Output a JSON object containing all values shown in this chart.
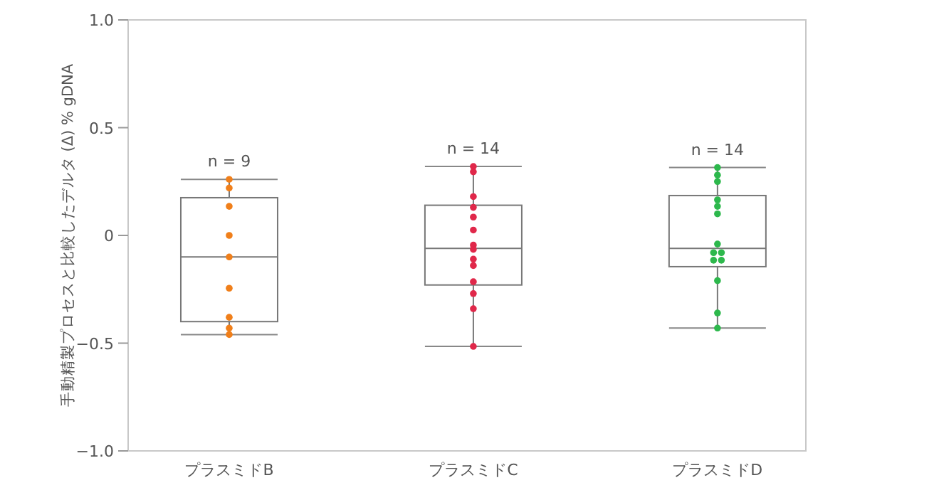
{
  "chart_data": {
    "type": "box",
    "ylabel": "手動精製プロセスと比較したデルタ (Δ) % gDNA",
    "categories": [
      "プラスミドB",
      "プラスミドC",
      "プラスミドD"
    ],
    "ylim": [
      -1,
      1
    ],
    "yticks": [
      {
        "value": -1,
        "label": "−1.0"
      },
      {
        "value": -0.5,
        "label": "−0.5"
      },
      {
        "value": 0,
        "label": "0"
      },
      {
        "value": 0.5,
        "label": "0.5"
      },
      {
        "value": 1,
        "label": "1.0"
      }
    ],
    "marker": "circle",
    "boxes": [
      {
        "low": -0.46,
        "q1": -0.4,
        "median": -0.1,
        "q3": 0.175,
        "high": 0.26
      },
      {
        "low": -0.515,
        "q1": -0.23,
        "median": -0.06,
        "q3": 0.14,
        "high": 0.32
      },
      {
        "low": -0.43,
        "q1": -0.145,
        "median": -0.06,
        "q3": 0.185,
        "high": 0.315
      }
    ],
    "series": [
      {
        "type": "scatter",
        "color": "#f07f1a",
        "x": [
          "プラスミドB",
          "プラスミドB",
          "プラスミドB",
          "プラスミドB",
          "プラスミドB",
          "プラスミドB",
          "プラスミドB",
          "プラスミドB",
          "プラスミドB"
        ],
        "values": [
          0.26,
          0.22,
          0.135,
          0.0,
          -0.1,
          -0.245,
          -0.38,
          -0.43,
          -0.46
        ]
      },
      {
        "type": "scatter",
        "color": "#e0284a",
        "x": [
          "プラスミドC",
          "プラスミドC",
          "プラスミドC",
          "プラスミドC",
          "プラスミドC",
          "プラスミドC",
          "プラスミドC",
          "プラスミドC",
          "プラスミドC",
          "プラスミドC",
          "プラスミドC",
          "プラスミドC",
          "プラスミドC",
          "プラスミドC"
        ],
        "values": [
          0.32,
          0.295,
          0.18,
          0.13,
          0.085,
          0.025,
          -0.045,
          -0.065,
          -0.11,
          -0.14,
          -0.215,
          -0.27,
          -0.34,
          -0.515
        ]
      },
      {
        "type": "scatter",
        "color": "#2db84c",
        "x": [
          "プラスミドD",
          "プラスミドD",
          "プラスミドD",
          "プラスミドD",
          "プラスミドD",
          "プラスミドD",
          "プラスミドD",
          "プラスミドD",
          "プラスミドD",
          "プラスミドD",
          "プラスミドD",
          "プラスミドD",
          "プラスミドD",
          "プラスミドD"
        ],
        "values": [
          0.315,
          0.28,
          0.25,
          0.165,
          0.135,
          0.1,
          -0.04,
          -0.08,
          -0.08,
          -0.115,
          -0.115,
          -0.21,
          -0.36,
          -0.43
        ]
      }
    ],
    "annotations": [
      "n = 9",
      "n = 14",
      "n = 14"
    ]
  }
}
